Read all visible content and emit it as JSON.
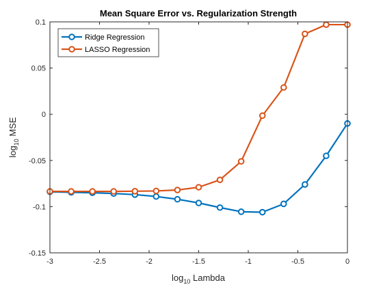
{
  "chart_data": {
    "type": "line",
    "title": "Mean Square Error vs. Regularization Strength",
    "xlabel": "Lambda",
    "xlabel_prefix": "log",
    "xlabel_sub": "10",
    "ylabel": "MSE",
    "ylabel_prefix": "log",
    "ylabel_sub": "10",
    "xlim": [
      -3,
      0
    ],
    "ylim": [
      -0.15,
      0.1
    ],
    "xticks": [
      -3,
      -2.5,
      -2,
      -1.5,
      -1,
      -0.5,
      0
    ],
    "xtick_labels": [
      "-3",
      "-2.5",
      "-2",
      "-1.5",
      "-1",
      "-0.5",
      "0"
    ],
    "yticks": [
      -0.15,
      -0.1,
      -0.05,
      0,
      0.05,
      0.1
    ],
    "ytick_labels": [
      "-0.15",
      "-0.1",
      "-0.05",
      "0",
      "0.05",
      "0.1"
    ],
    "grid": false,
    "legend_position": "top-left",
    "x": [
      -3,
      -2.7857,
      -2.5714,
      -2.3571,
      -2.1429,
      -1.9286,
      -1.7143,
      -1.5,
      -1.2857,
      -1.0714,
      -0.8571,
      -0.6429,
      -0.4286,
      -0.2143,
      0
    ],
    "series": [
      {
        "name": "Ridge Regression",
        "color": "#0072BD",
        "values": [
          -0.084,
          -0.0845,
          -0.085,
          -0.0858,
          -0.087,
          -0.089,
          -0.092,
          -0.096,
          -0.101,
          -0.1055,
          -0.106,
          -0.097,
          -0.076,
          -0.045,
          -0.01
        ]
      },
      {
        "name": "LASSO Regression",
        "color": "#D95319",
        "values": [
          -0.0835,
          -0.0835,
          -0.0835,
          -0.0835,
          -0.0833,
          -0.083,
          -0.082,
          -0.079,
          -0.071,
          -0.051,
          -0.0015,
          0.029,
          0.087,
          0.097,
          0.097
        ]
      }
    ]
  }
}
